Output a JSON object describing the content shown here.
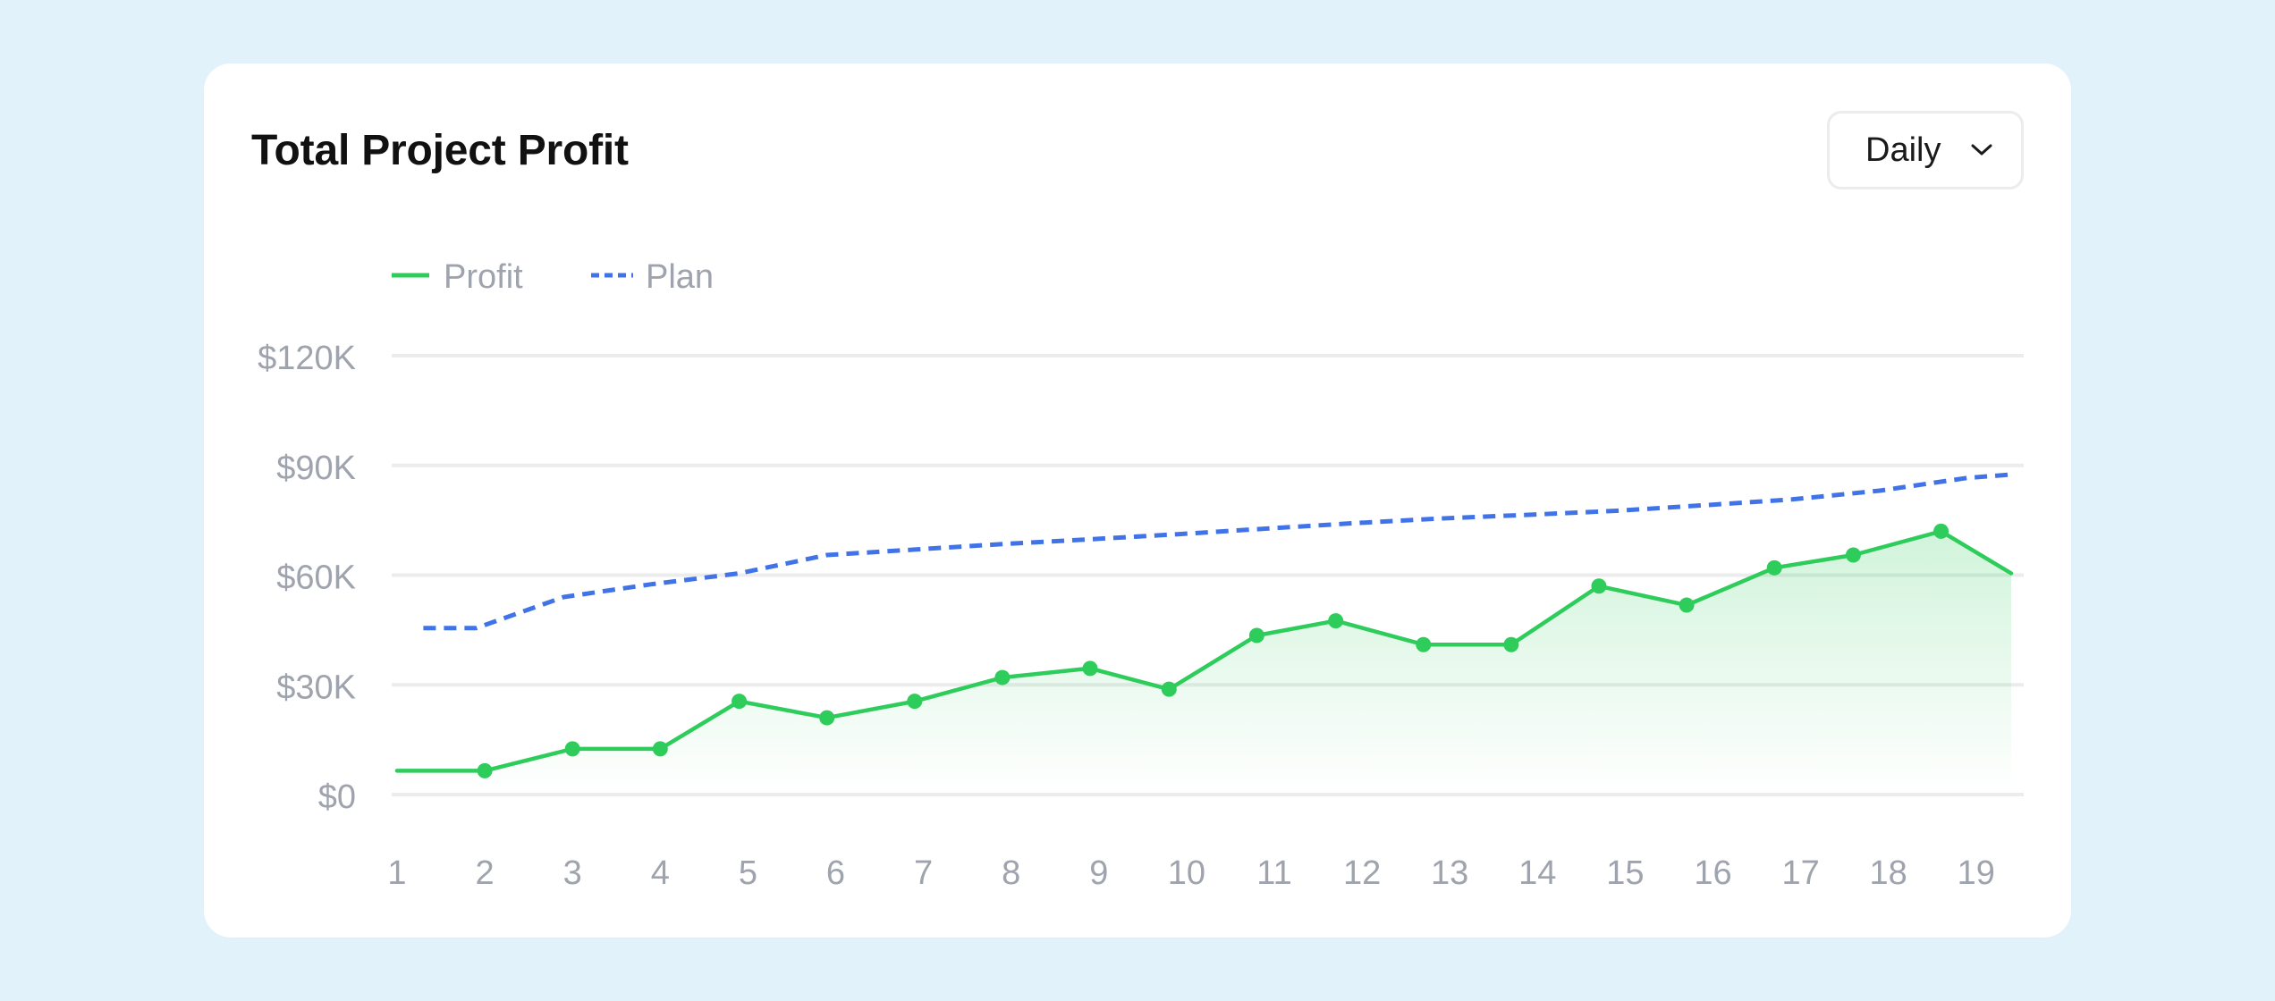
{
  "card": {
    "title": "Total Project Profit",
    "period_select": {
      "selected": "Daily"
    }
  },
  "chart_data": {
    "type": "line",
    "x": [
      1,
      2,
      3,
      4,
      5,
      6,
      7,
      8,
      9,
      10,
      11,
      12,
      13,
      14,
      15,
      16,
      17,
      18,
      19
    ],
    "x_tick_labels": [
      "1",
      "2",
      "3",
      "4",
      "5",
      "6",
      "7",
      "8",
      "9",
      "10",
      "11",
      "12",
      "13",
      "14",
      "15",
      "16",
      "17",
      "18",
      "19"
    ],
    "y_tick_labels": [
      "$0",
      "$30K",
      "$60K",
      "$90K",
      "$120K"
    ],
    "y_ticks": [
      0,
      30000,
      60000,
      90000,
      120000
    ],
    "ylim": [
      0,
      120000
    ],
    "grid": true,
    "legend_position": "top-left",
    "series": [
      {
        "name": "Profit",
        "style": "solid-area",
        "color": "#2ecc5b",
        "points": [
          [
            1.0,
            6500
          ],
          [
            2.0,
            6500
          ],
          [
            3.0,
            12500
          ],
          [
            4.0,
            12500
          ],
          [
            4.9,
            25500
          ],
          [
            5.9,
            21000
          ],
          [
            6.9,
            25500
          ],
          [
            7.9,
            32000
          ],
          [
            8.9,
            34500
          ],
          [
            9.8,
            28800
          ],
          [
            10.8,
            43500
          ],
          [
            11.7,
            47500
          ],
          [
            12.7,
            41000
          ],
          [
            13.7,
            41000
          ],
          [
            14.7,
            57000
          ],
          [
            15.7,
            51800
          ],
          [
            16.7,
            62000
          ],
          [
            17.6,
            65500
          ],
          [
            18.6,
            72000
          ],
          [
            19.4,
            60500
          ]
        ]
      },
      {
        "name": "Plan",
        "style": "dashed",
        "color": "#4173e8",
        "points": [
          [
            1.3,
            45500
          ],
          [
            1.9,
            45500
          ],
          [
            2.9,
            54000
          ],
          [
            3.9,
            57500
          ],
          [
            4.9,
            60500
          ],
          [
            5.9,
            65500
          ],
          [
            6.9,
            67000
          ],
          [
            7.9,
            68500
          ],
          [
            8.9,
            69800
          ],
          [
            9.9,
            71200
          ],
          [
            10.9,
            72700
          ],
          [
            11.9,
            74200
          ],
          [
            12.9,
            75500
          ],
          [
            13.9,
            76500
          ],
          [
            14.9,
            77600
          ],
          [
            15.9,
            79100
          ],
          [
            16.9,
            80700
          ],
          [
            17.9,
            83100
          ],
          [
            18.9,
            86600
          ],
          [
            19.4,
            87500
          ]
        ]
      }
    ]
  }
}
